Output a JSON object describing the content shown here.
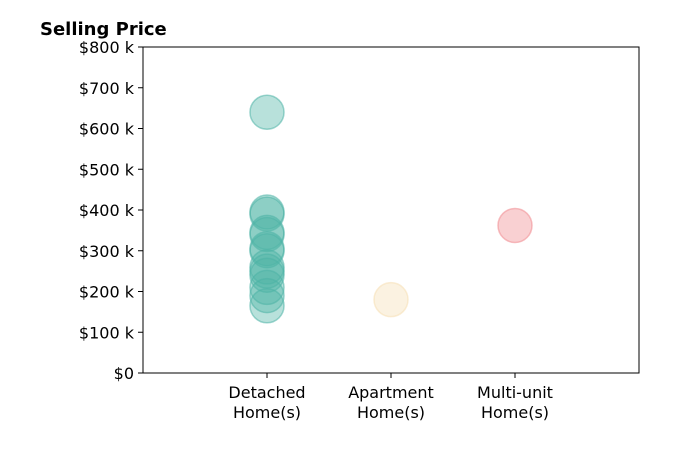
{
  "chart_data": {
    "type": "scatter",
    "title": "Selling Price",
    "xlabel": "",
    "ylabel": "",
    "ylim": [
      0,
      800000
    ],
    "y_ticks": [
      {
        "value": 0,
        "label": "$0"
      },
      {
        "value": 100000,
        "label": "$100 k"
      },
      {
        "value": 200000,
        "label": "$200 k"
      },
      {
        "value": 300000,
        "label": "$300 k"
      },
      {
        "value": 400000,
        "label": "$400 k"
      },
      {
        "value": 500000,
        "label": "$500 k"
      },
      {
        "value": 600000,
        "label": "$600 k"
      },
      {
        "value": 700000,
        "label": "$700 k"
      },
      {
        "value": 800000,
        "label": "$800 k"
      }
    ],
    "categories": [
      {
        "lines": [
          "Detached",
          "Home(s)"
        ],
        "color": "#4DB3A6"
      },
      {
        "lines": [
          "Apartment",
          "Home(s)"
        ],
        "color": "#F5DEB3"
      },
      {
        "lines": [
          "Multi-unit",
          "Home(s)"
        ],
        "color": "#F08A8F"
      }
    ],
    "grid": false,
    "series": [
      {
        "category_index": 0,
        "values": [
          640000,
          395000,
          390000,
          345000,
          340000,
          305000,
          300000,
          260000,
          250000,
          240000,
          210000,
          190000,
          165000
        ]
      },
      {
        "category_index": 1,
        "values": [
          180000
        ]
      },
      {
        "category_index": 2,
        "values": [
          362000
        ]
      }
    ]
  }
}
